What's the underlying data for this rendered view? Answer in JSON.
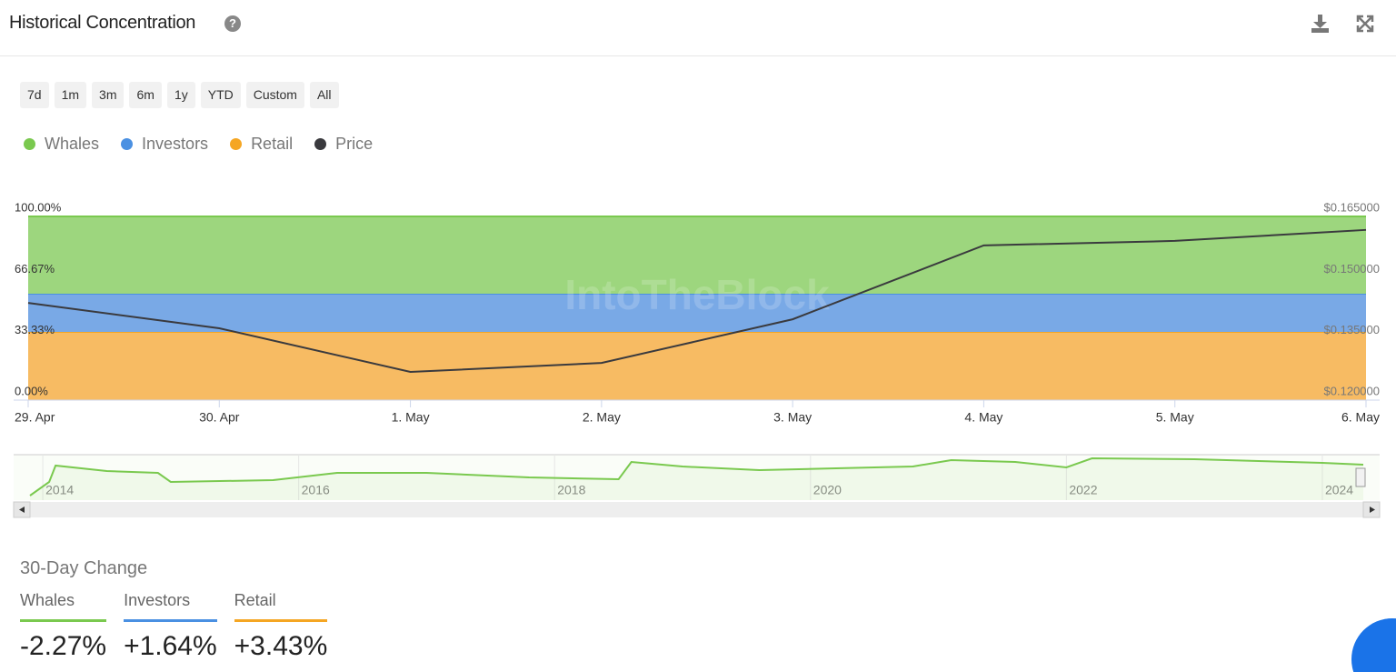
{
  "header": {
    "title": "Historical Concentration"
  },
  "range_buttons": [
    "7d",
    "1m",
    "3m",
    "6m",
    "1y",
    "YTD",
    "Custom",
    "All"
  ],
  "chart_data": [
    {
      "type": "area",
      "watermark": "IntoTheBlock",
      "categories": [
        "29. Apr",
        "30. Apr",
        "1. May",
        "2. May",
        "3. May",
        "4. May",
        "5. May",
        "6. May"
      ],
      "series": [
        {
          "name": "Whales",
          "color": "#7ac94f",
          "fill": "#9dd67e",
          "type": "area",
          "axis": "y",
          "values": [
            42.1,
            42.1,
            42.1,
            42.1,
            42.1,
            42.1,
            42.1,
            42.1
          ]
        },
        {
          "name": "Investors",
          "color": "#4a90e2",
          "fill": "#79a9e6",
          "type": "area",
          "axis": "y",
          "values": [
            20.8,
            20.8,
            20.8,
            20.8,
            20.8,
            20.8,
            20.8,
            20.8
          ]
        },
        {
          "name": "Retail",
          "color": "#f5a623",
          "fill": "#f7bb63",
          "type": "area",
          "axis": "y",
          "values": [
            37.1,
            37.1,
            37.1,
            37.1,
            37.1,
            37.1,
            37.1,
            37.1
          ]
        },
        {
          "name": "Price",
          "color": "#3a3a3e",
          "type": "line",
          "axis": "y2",
          "values": [
            0.1438,
            0.1376,
            0.1269,
            0.1291,
            0.1398,
            0.1579,
            0.159,
            0.1617
          ]
        }
      ],
      "ylim": [
        0,
        100
      ],
      "yticks": [
        {
          "value": 0,
          "label": "0.00%"
        },
        {
          "value": 33.33,
          "label": "33.33%"
        },
        {
          "value": 66.67,
          "label": "66.67%"
        },
        {
          "value": 100,
          "label": "100.00%"
        }
      ],
      "y2lim": [
        0.12,
        0.165
      ],
      "y2ticks": [
        {
          "value": 0.12,
          "label": "$0.120000"
        },
        {
          "value": 0.135,
          "label": "$0.135000"
        },
        {
          "value": 0.15,
          "label": "$0.150000"
        },
        {
          "value": 0.165,
          "label": "$0.165000"
        }
      ]
    },
    {
      "type": "line",
      "x": [
        2013.9,
        2014.05,
        2014.1,
        2014.5,
        2014.9,
        2015.0,
        2015.8,
        2016.3,
        2017.0,
        2017.8,
        2018.5,
        2018.6,
        2019.0,
        2019.6,
        2020.2,
        2020.8,
        2021.1,
        2021.6,
        2022.0,
        2022.2,
        2023.0,
        2024.0,
        2024.32
      ],
      "series": [
        {
          "name": "Whales",
          "color": "#7ac94f",
          "values": [
            32,
            38,
            45.2,
            42.8,
            42,
            38,
            38.8,
            42,
            42,
            40,
            39.2,
            46.8,
            44.8,
            43.2,
            44,
            44.8,
            47.6,
            46.8,
            44.4,
            48.4,
            48,
            46.4,
            45.6
          ]
        }
      ],
      "xlim": [
        2013.9,
        2024.32
      ],
      "xticks": [
        2014,
        2016,
        2018,
        2020,
        2022,
        2024
      ],
      "ylim": [
        30,
        50
      ]
    }
  ],
  "change": {
    "title": "30-Day Change",
    "items": [
      {
        "name": "Whales",
        "value": "-2.27%",
        "color": "#7ac94f"
      },
      {
        "name": "Investors",
        "value": "+1.64%",
        "color": "#4a90e2"
      },
      {
        "name": "Retail",
        "value": "+3.43%",
        "color": "#f5a623"
      }
    ]
  }
}
